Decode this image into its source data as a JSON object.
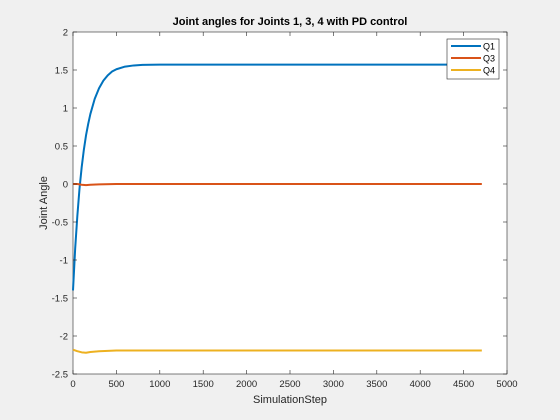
{
  "chart_data": {
    "type": "line",
    "title": "Joint angles for Joints 1, 3, 4 with PD control",
    "xlabel": "SimulationStep",
    "ylabel": "Joint Angle",
    "xlim": [
      0,
      5000
    ],
    "ylim": [
      -2.5,
      2
    ],
    "xticks": [
      0,
      500,
      1000,
      1500,
      2000,
      2500,
      3000,
      3500,
      4000,
      4500,
      5000
    ],
    "yticks": [
      -2.5,
      -2,
      -1.5,
      -1,
      -0.5,
      0,
      0.5,
      1,
      1.5,
      2
    ],
    "x_tick_labels": [
      "0",
      "500",
      "1000",
      "1500",
      "2000",
      "2500",
      "3000",
      "3500",
      "4000",
      "4500",
      "5000"
    ],
    "y_tick_labels": [
      "-2.5",
      "-2",
      "-1.5",
      "-1",
      "-0.5",
      "0",
      "0.5",
      "1",
      "1.5",
      "2"
    ],
    "grid": false,
    "legend_position": "top-right",
    "series": [
      {
        "name": "Q1",
        "color": "#0072BD",
        "x": [
          0,
          25,
          50,
          75,
          100,
          125,
          150,
          175,
          200,
          250,
          300,
          350,
          400,
          450,
          500,
          600,
          700,
          800,
          1000,
          1500,
          2000,
          3000,
          4000,
          4710
        ],
        "y": [
          -1.4,
          -0.85,
          -0.42,
          -0.06,
          0.22,
          0.45,
          0.64,
          0.79,
          0.92,
          1.12,
          1.26,
          1.36,
          1.43,
          1.48,
          1.51,
          1.545,
          1.56,
          1.567,
          1.57,
          1.57,
          1.57,
          1.57,
          1.57,
          1.57
        ]
      },
      {
        "name": "Q3",
        "color": "#D95319",
        "x": [
          0,
          50,
          100,
          150,
          200,
          300,
          500,
          1000,
          2000,
          3000,
          4000,
          4710
        ],
        "y": [
          0.0,
          0.0,
          -0.01,
          -0.015,
          -0.01,
          -0.005,
          0.0,
          0.0,
          0.0,
          0.0,
          0.0,
          0.0
        ]
      },
      {
        "name": "Q4",
        "color": "#EDB120",
        "x": [
          0,
          50,
          100,
          150,
          200,
          300,
          400,
          500,
          700,
          1000,
          2000,
          3000,
          4000,
          4710
        ],
        "y": [
          -2.18,
          -2.2,
          -2.215,
          -2.22,
          -2.21,
          -2.2,
          -2.195,
          -2.19,
          -2.19,
          -2.19,
          -2.19,
          -2.19,
          -2.19,
          -2.19
        ]
      }
    ]
  }
}
